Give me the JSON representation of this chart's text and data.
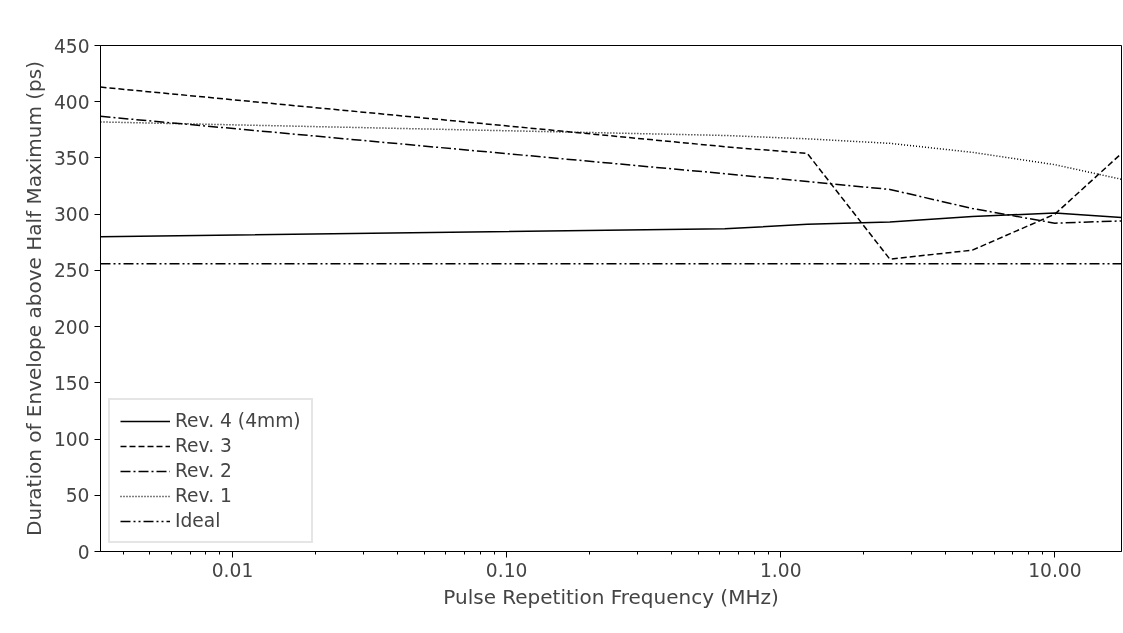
{
  "chart_data": {
    "type": "line",
    "xlabel": "Pulse Repetition Frequency (MHz)",
    "ylabel": "Duration of Envelope above Half Maximum (ps)",
    "x": [
      0.0033,
      0.625,
      1.25,
      2.5,
      5,
      10,
      17.5
    ],
    "series": [
      {
        "name": "Rev. 4 (4mm)",
        "color": "#000000",
        "line_style": "solid",
        "values": [
          280,
          287,
          291,
          293,
          298,
          301,
          297
        ]
      },
      {
        "name": "Rev. 3",
        "color": "#000000",
        "line_style": "dashed",
        "values": [
          413,
          360,
          354,
          260,
          268,
          300,
          354
        ]
      },
      {
        "name": "Rev. 2",
        "color": "#000000",
        "line_style": "dashdot",
        "values": [
          387,
          336,
          329,
          322,
          305,
          292,
          294
        ]
      },
      {
        "name": "Rev. 1",
        "color": "#000000",
        "line_style": "dotted",
        "values": [
          382,
          370,
          367,
          363,
          355,
          344,
          331
        ]
      },
      {
        "name": "Ideal",
        "color": "#000000",
        "line_style": "dashdotdot",
        "values": [
          256,
          256,
          256,
          256,
          256,
          256,
          256
        ]
      }
    ],
    "log": "x",
    "xlim": [
      0.0033,
      17.5
    ],
    "xticks": [
      {
        "value": 0.01,
        "label": "0.01"
      },
      {
        "value": 0.1,
        "label": "0.10"
      },
      {
        "value": 1,
        "label": "1.00"
      },
      {
        "value": 10,
        "label": "10.00"
      }
    ],
    "ylim": [
      0,
      450
    ],
    "yticks": [
      0,
      50,
      100,
      150,
      200,
      250,
      300,
      350,
      400,
      450
    ],
    "grid": false,
    "legend": "bottom left"
  }
}
